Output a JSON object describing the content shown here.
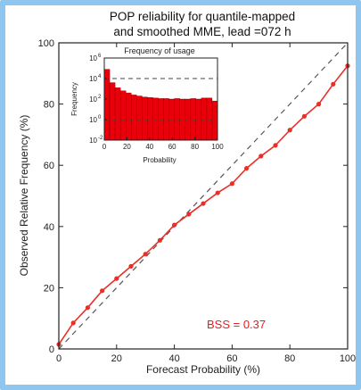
{
  "chart_data": {
    "type": "line",
    "title_lines": [
      "POP reliability for quantile-mapped",
      "and smoothed MME, lead =072 h"
    ],
    "xlabel": "Forecast Probability (%)",
    "ylabel": "Observed Relative Frequency (%)",
    "xlim": [
      0,
      100
    ],
    "ylim": [
      0,
      100
    ],
    "xticks": [
      0,
      20,
      40,
      60,
      80,
      100
    ],
    "yticks": [
      0,
      20,
      40,
      60,
      80,
      100
    ],
    "diagonal": "dashed",
    "series": [
      {
        "color": "#e8302a",
        "x": [
          0,
          5,
          10,
          15,
          20,
          25,
          30,
          35,
          40,
          45,
          50,
          55,
          60,
          65,
          70,
          75,
          80,
          85,
          90,
          95,
          100
        ],
        "y": [
          1.5,
          8.5,
          13.5,
          19,
          23,
          27,
          31,
          35.5,
          40.5,
          44,
          47.5,
          51,
          54,
          59,
          63,
          66.5,
          71.5,
          76,
          80,
          86.5,
          92.5
        ]
      }
    ],
    "annotation": "BSS = 0.37",
    "inset": {
      "type": "bar",
      "title": "Frequency of usage",
      "xlabel": "Probability",
      "ylabel": "Frequency",
      "yscale": "log",
      "ylim_exp": [
        -2,
        6
      ],
      "ytick_labels": [
        "10",
        "10",
        "10",
        "10",
        "10"
      ],
      "ytick_exps": [
        "-2",
        "0",
        "2",
        "4",
        "6"
      ],
      "xticks": [
        0,
        20,
        40,
        60,
        80,
        100
      ],
      "bar_color": "#e8000b",
      "dashed_levels_exp": [
        0,
        4
      ],
      "bars_log10": [
        4.9,
        3.6,
        3.1,
        2.8,
        2.6,
        2.4,
        2.3,
        2.2,
        2.15,
        2.1,
        2.05,
        2.05,
        2.0,
        2.05,
        2.0,
        2.0,
        2.05,
        2.0,
        2.1,
        2.1,
        1.8
      ]
    }
  }
}
